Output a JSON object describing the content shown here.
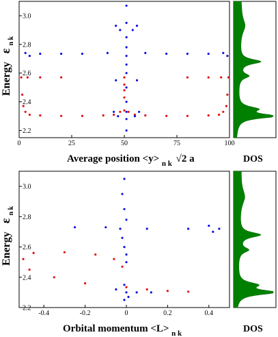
{
  "chart_data": [
    {
      "type": "scatter",
      "panel": "top",
      "ylabel": {
        "main": "Energy",
        "symbol": "ε",
        "sub": "n k"
      },
      "xlabel": {
        "main": "Average position <y>",
        "sub": "n k",
        "tail": "√2 a"
      },
      "xlim": [
        0,
        100
      ],
      "ylim": [
        2.15,
        3.1
      ],
      "xticks": [
        "0",
        "25",
        "50",
        "75",
        "100"
      ],
      "yticks": [
        "2.2",
        "2.4",
        "2.6",
        "2.8",
        "3.0"
      ],
      "colors": {
        "blue": "#1010e0",
        "red": "#e01010"
      },
      "series": [
        {
          "color": "red",
          "points": [
            [
              1,
              2.57
            ],
            [
              1.5,
              2.45
            ],
            [
              2,
              2.37
            ],
            [
              3,
              2.33
            ],
            [
              5,
              2.31
            ],
            [
              10,
              2.305
            ],
            [
              20,
              2.302
            ],
            [
              30,
              2.302
            ],
            [
              40,
              2.305
            ],
            [
              45,
              2.31
            ],
            [
              48,
              2.33
            ],
            [
              50,
              2.34
            ],
            [
              52,
              2.33
            ],
            [
              55,
              2.31
            ],
            [
              60,
              2.305
            ],
            [
              70,
              2.302
            ],
            [
              80,
              2.302
            ],
            [
              90,
              2.305
            ],
            [
              95,
              2.31
            ],
            [
              97,
              2.33
            ],
            [
              98.5,
              2.37
            ],
            [
              99,
              2.45
            ],
            [
              99.5,
              2.57
            ],
            [
              4,
              2.57
            ],
            [
              10,
              2.57
            ],
            [
              20,
              2.57
            ],
            [
              50,
              2.57
            ],
            [
              80,
              2.57
            ],
            [
              90,
              2.57
            ],
            [
              96,
              2.57
            ],
            [
              50,
              2.43
            ],
            [
              50,
              2.48
            ],
            [
              50,
              2.52
            ]
          ]
        },
        {
          "color": "blue",
          "points": [
            [
              51,
              3.07
            ],
            [
              51,
              2.95
            ],
            [
              51,
              2.85
            ],
            [
              51,
              2.78
            ],
            [
              51,
              2.72
            ],
            [
              51,
              2.66
            ],
            [
              51,
              2.6
            ],
            [
              51,
              2.5
            ],
            [
              51,
              2.4
            ],
            [
              51,
              2.33
            ],
            [
              51,
              2.28
            ],
            [
              51,
              2.2
            ],
            [
              46,
              2.93
            ],
            [
              48,
              2.9
            ],
            [
              54,
              2.9
            ],
            [
              56,
              2.93
            ],
            [
              42,
              2.74
            ],
            [
              60,
              2.74
            ],
            [
              3,
              2.74
            ],
            [
              5,
              2.72
            ],
            [
              99,
              2.72
            ],
            [
              97,
              2.74
            ],
            [
              10,
              2.735
            ],
            [
              20,
              2.735
            ],
            [
              30,
              2.735
            ],
            [
              70,
              2.735
            ],
            [
              80,
              2.735
            ],
            [
              90,
              2.735
            ],
            [
              46,
              2.55
            ],
            [
              56,
              2.55
            ],
            [
              47,
              2.3
            ],
            [
              55,
              2.3
            ],
            [
              45,
              2.33
            ],
            [
              57,
              2.33
            ]
          ]
        }
      ]
    },
    {
      "type": "line",
      "panel": "top-dos",
      "xlabel": "DOS",
      "ylim": [
        2.15,
        3.1
      ],
      "color": "#008000",
      "peaks": [
        2.3,
        2.35,
        2.58,
        2.68,
        2.93
      ]
    },
    {
      "type": "scatter",
      "panel": "bottom",
      "ylabel": {
        "main": "Energy",
        "symbol": "ε",
        "sub": "n k"
      },
      "xlabel": {
        "main": "Orbital momentum <L>",
        "sub": "n k"
      },
      "xlim": [
        -0.52,
        0.5
      ],
      "ylim": [
        2.2,
        3.1
      ],
      "xticks": [
        "-0.4",
        "-0.2",
        "0",
        "0.2",
        "0.4"
      ],
      "yticks": [
        "2.2",
        "2.4",
        "2.6",
        "2.8",
        "3.0"
      ],
      "series": [
        {
          "color": "red",
          "points": [
            [
              -0.02,
              2.47
            ],
            [
              -0.06,
              2.52
            ],
            [
              -0.15,
              2.55
            ],
            [
              -0.3,
              2.565
            ],
            [
              -0.45,
              2.56
            ],
            [
              -0.5,
              2.52
            ],
            [
              -0.47,
              2.45
            ],
            [
              -0.35,
              2.4
            ],
            [
              -0.2,
              2.36
            ],
            [
              0,
              2.335
            ],
            [
              0.1,
              2.32
            ],
            [
              0.2,
              2.31
            ],
            [
              0.3,
              2.305
            ]
          ]
        },
        {
          "color": "blue",
          "points": [
            [
              -0.01,
              3.05
            ],
            [
              -0.02,
              2.95
            ],
            [
              -0.01,
              2.85
            ],
            [
              0,
              2.78
            ],
            [
              -0.03,
              2.72
            ],
            [
              -0.02,
              2.66
            ],
            [
              -0.01,
              2.6
            ],
            [
              0,
              2.55
            ],
            [
              0,
              2.5
            ],
            [
              -0.01,
              2.35
            ],
            [
              0,
              2.3
            ],
            [
              -0.01,
              2.25
            ],
            [
              0.01,
              2.27
            ],
            [
              -0.25,
              2.73
            ],
            [
              -0.1,
              2.73
            ],
            [
              0.1,
              2.72
            ],
            [
              0.3,
              2.72
            ],
            [
              0.42,
              2.7
            ],
            [
              0.45,
              2.72
            ],
            [
              0.4,
              2.74
            ],
            [
              0.05,
              2.3
            ],
            [
              0.12,
              2.3
            ],
            [
              -0.05,
              2.32
            ]
          ]
        }
      ]
    },
    {
      "type": "line",
      "panel": "bottom-dos",
      "xlabel": "DOS",
      "ylim": [
        2.2,
        3.1
      ],
      "color": "#008000",
      "peaks": [
        2.3,
        2.35,
        2.58,
        2.68,
        2.93
      ]
    }
  ]
}
